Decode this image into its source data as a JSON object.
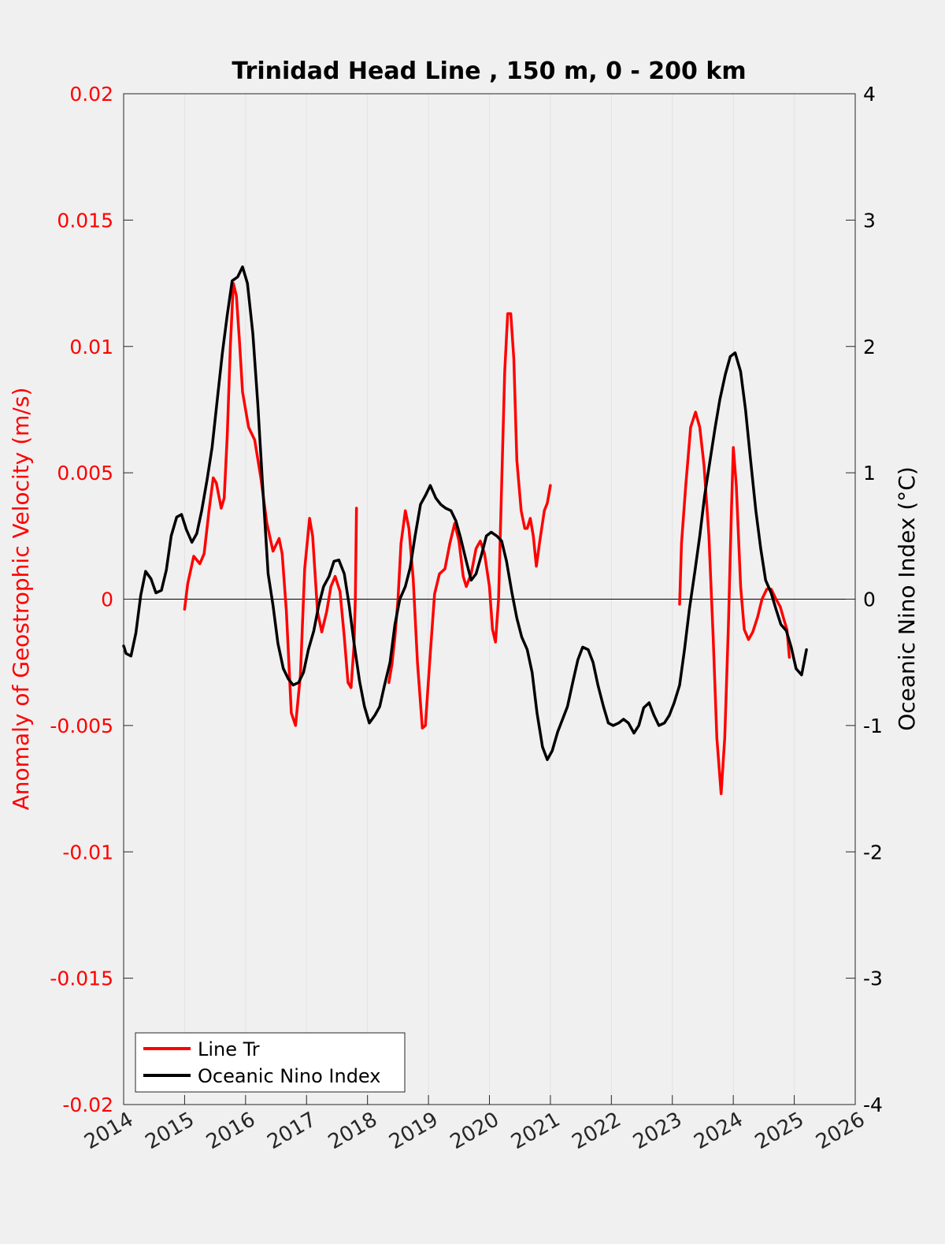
{
  "chart_data": {
    "type": "line",
    "title": "Trinidad Head Line , 150 m, 0 - 200 km",
    "ylabel_left": "Anomaly of Geostrophic Velocity (m/s)",
    "ylabel_right": "Oceanic Nino Index (°C)",
    "xlim": [
      2014,
      2026
    ],
    "ylim_left": [
      -0.02,
      0.02
    ],
    "ylim_right": [
      -4,
      4
    ],
    "x_ticks": [
      "2014",
      "2015",
      "2016",
      "2017",
      "2018",
      "2019",
      "2020",
      "2021",
      "2022",
      "2023",
      "2024",
      "2025",
      "2026"
    ],
    "y_left_ticks": [
      "0.02",
      "0.015",
      "0.01",
      "0.005",
      "0",
      "-0.005",
      "-0.01",
      "-0.015",
      "-0.02"
    ],
    "y_right_ticks": [
      "4",
      "3",
      "2",
      "1",
      "0",
      "-1",
      "-2",
      "-3",
      "-4"
    ],
    "grid": "vertical",
    "legend_position": "bottom-left",
    "colors": {
      "line_tr": "#ff0000",
      "oni": "#000000",
      "left_axis": "#ff0000",
      "right_axis": "#000000"
    },
    "series": [
      {
        "name": "Line Tr",
        "axis": "left",
        "segments": [
          [
            [
              2015.0,
              -0.0004
            ],
            [
              2015.05,
              0.0006
            ],
            [
              2015.15,
              0.0017
            ],
            [
              2015.25,
              0.0014
            ],
            [
              2015.32,
              0.0018
            ],
            [
              2015.4,
              0.0035
            ],
            [
              2015.47,
              0.0048
            ],
            [
              2015.52,
              0.0046
            ],
            [
              2015.6,
              0.0036
            ],
            [
              2015.65,
              0.004
            ],
            [
              2015.7,
              0.0065
            ],
            [
              2015.75,
              0.01
            ],
            [
              2015.8,
              0.0125
            ],
            [
              2015.85,
              0.012
            ],
            [
              2015.9,
              0.0102
            ],
            [
              2015.95,
              0.0082
            ],
            [
              2016.05,
              0.0068
            ],
            [
              2016.15,
              0.0063
            ],
            [
              2016.25,
              0.0048
            ],
            [
              2016.35,
              0.003
            ],
            [
              2016.45,
              0.0019
            ],
            [
              2016.55,
              0.0024
            ],
            [
              2016.6,
              0.0018
            ],
            [
              2016.67,
              -0.0005
            ],
            [
              2016.75,
              -0.0045
            ],
            [
              2016.82,
              -0.005
            ],
            [
              2016.9,
              -0.003
            ],
            [
              2016.97,
              0.0012
            ],
            [
              2017.05,
              0.0032
            ],
            [
              2017.1,
              0.0025
            ],
            [
              2017.18,
              -0.0005
            ],
            [
              2017.25,
              -0.0013
            ],
            [
              2017.33,
              -0.0005
            ],
            [
              2017.4,
              0.0005
            ],
            [
              2017.47,
              0.0009
            ],
            [
              2017.55,
              0.0003
            ],
            [
              2017.62,
              -0.0015
            ],
            [
              2017.68,
              -0.0033
            ],
            [
              2017.73,
              -0.0035
            ],
            [
              2017.78,
              -0.0018
            ],
            [
              2017.8,
              0.0
            ],
            [
              2017.82,
              0.0036
            ]
          ],
          [
            [
              2018.35,
              -0.0033
            ],
            [
              2018.4,
              -0.0026
            ],
            [
              2018.45,
              -0.0015
            ],
            [
              2018.5,
              0.0
            ],
            [
              2018.55,
              0.0022
            ],
            [
              2018.62,
              0.0035
            ],
            [
              2018.68,
              0.0028
            ],
            [
              2018.75,
              0.0008
            ],
            [
              2018.82,
              -0.0025
            ],
            [
              2018.9,
              -0.0051
            ],
            [
              2018.95,
              -0.005
            ],
            [
              2019.02,
              -0.0025
            ],
            [
              2019.1,
              0.0002
            ],
            [
              2019.18,
              0.001
            ],
            [
              2019.27,
              0.0012
            ],
            [
              2019.35,
              0.0022
            ],
            [
              2019.43,
              0.003
            ],
            [
              2019.5,
              0.0023
            ],
            [
              2019.57,
              0.0009
            ],
            [
              2019.62,
              0.0005
            ],
            [
              2019.7,
              0.001
            ],
            [
              2019.78,
              0.002
            ],
            [
              2019.85,
              0.0023
            ],
            [
              2019.92,
              0.0018
            ],
            [
              2020.0,
              0.0005
            ],
            [
              2020.05,
              -0.0012
            ],
            [
              2020.1,
              -0.0017
            ],
            [
              2020.15,
              0.0
            ],
            [
              2020.2,
              0.0045
            ],
            [
              2020.25,
              0.009
            ],
            [
              2020.3,
              0.0113
            ],
            [
              2020.35,
              0.0113
            ],
            [
              2020.4,
              0.0095
            ],
            [
              2020.45,
              0.0055
            ],
            [
              2020.52,
              0.0035
            ],
            [
              2020.58,
              0.0028
            ],
            [
              2020.62,
              0.0028
            ],
            [
              2020.67,
              0.0032
            ],
            [
              2020.72,
              0.0025
            ],
            [
              2020.77,
              0.0013
            ],
            [
              2020.82,
              0.0022
            ],
            [
              2020.9,
              0.0035
            ],
            [
              2020.95,
              0.0038
            ],
            [
              2021.0,
              0.0045
            ]
          ],
          [
            [
              2023.12,
              -0.0002
            ],
            [
              2023.15,
              0.0022
            ],
            [
              2023.22,
              0.0045
            ],
            [
              2023.3,
              0.0068
            ],
            [
              2023.38,
              0.0074
            ],
            [
              2023.45,
              0.0068
            ],
            [
              2023.52,
              0.0053
            ],
            [
              2023.6,
              0.0025
            ],
            [
              2023.67,
              -0.0015
            ],
            [
              2023.73,
              -0.0055
            ],
            [
              2023.8,
              -0.0077
            ],
            [
              2023.86,
              -0.0055
            ],
            [
              2023.92,
              -0.001
            ],
            [
              2023.97,
              0.0035
            ],
            [
              2024.0,
              0.006
            ],
            [
              2024.05,
              0.0045
            ],
            [
              2024.12,
              0.0005
            ],
            [
              2024.18,
              -0.0012
            ],
            [
              2024.25,
              -0.0016
            ],
            [
              2024.32,
              -0.0013
            ],
            [
              2024.4,
              -0.0007
            ],
            [
              2024.47,
              0.0
            ],
            [
              2024.55,
              0.0004
            ],
            [
              2024.62,
              0.0004
            ],
            [
              2024.7,
              0.0
            ],
            [
              2024.77,
              -0.0003
            ],
            [
              2024.83,
              -0.0008
            ],
            [
              2024.88,
              -0.0012
            ],
            [
              2024.92,
              -0.0023
            ]
          ]
        ]
      },
      {
        "name": "Oceanic Nino Index",
        "axis": "right",
        "segments": [
          [
            [
              2014.0,
              -0.37
            ],
            [
              2014.04,
              -0.43
            ],
            [
              2014.12,
              -0.45
            ],
            [
              2014.2,
              -0.27
            ],
            [
              2014.28,
              0.03
            ],
            [
              2014.36,
              0.22
            ],
            [
              2014.45,
              0.16
            ],
            [
              2014.53,
              0.05
            ],
            [
              2014.62,
              0.07
            ],
            [
              2014.7,
              0.23
            ],
            [
              2014.78,
              0.5
            ],
            [
              2014.87,
              0.65
            ],
            [
              2014.95,
              0.67
            ],
            [
              2015.03,
              0.55
            ],
            [
              2015.12,
              0.45
            ],
            [
              2015.2,
              0.52
            ],
            [
              2015.28,
              0.7
            ],
            [
              2015.37,
              0.95
            ],
            [
              2015.45,
              1.2
            ],
            [
              2015.53,
              1.55
            ],
            [
              2015.62,
              1.95
            ],
            [
              2015.7,
              2.25
            ],
            [
              2015.78,
              2.52
            ],
            [
              2015.87,
              2.55
            ],
            [
              2015.95,
              2.63
            ],
            [
              2016.03,
              2.5
            ],
            [
              2016.12,
              2.1
            ],
            [
              2016.2,
              1.55
            ],
            [
              2016.28,
              0.9
            ],
            [
              2016.37,
              0.2
            ],
            [
              2016.45,
              -0.05
            ],
            [
              2016.53,
              -0.35
            ],
            [
              2016.62,
              -0.55
            ],
            [
              2016.7,
              -0.63
            ],
            [
              2016.78,
              -0.68
            ],
            [
              2016.87,
              -0.66
            ],
            [
              2016.95,
              -0.58
            ],
            [
              2017.03,
              -0.4
            ],
            [
              2017.12,
              -0.25
            ],
            [
              2017.2,
              -0.05
            ],
            [
              2017.28,
              0.1
            ],
            [
              2017.37,
              0.18
            ],
            [
              2017.45,
              0.3
            ],
            [
              2017.53,
              0.31
            ],
            [
              2017.62,
              0.2
            ],
            [
              2017.7,
              -0.05
            ],
            [
              2017.78,
              -0.35
            ],
            [
              2017.87,
              -0.65
            ],
            [
              2017.95,
              -0.85
            ],
            [
              2018.03,
              -0.98
            ],
            [
              2018.12,
              -0.92
            ],
            [
              2018.2,
              -0.85
            ],
            [
              2018.28,
              -0.68
            ],
            [
              2018.37,
              -0.5
            ],
            [
              2018.45,
              -0.2
            ],
            [
              2018.53,
              0.0
            ],
            [
              2018.62,
              0.1
            ],
            [
              2018.7,
              0.25
            ],
            [
              2018.78,
              0.5
            ],
            [
              2018.87,
              0.75
            ],
            [
              2018.95,
              0.82
            ],
            [
              2019.03,
              0.9
            ],
            [
              2019.12,
              0.8
            ],
            [
              2019.2,
              0.75
            ],
            [
              2019.28,
              0.72
            ],
            [
              2019.37,
              0.7
            ],
            [
              2019.45,
              0.62
            ],
            [
              2019.53,
              0.48
            ],
            [
              2019.62,
              0.3
            ],
            [
              2019.7,
              0.15
            ],
            [
              2019.78,
              0.2
            ],
            [
              2019.87,
              0.35
            ],
            [
              2019.95,
              0.5
            ],
            [
              2020.03,
              0.53
            ],
            [
              2020.12,
              0.5
            ],
            [
              2020.2,
              0.46
            ],
            [
              2020.28,
              0.3
            ],
            [
              2020.37,
              0.05
            ],
            [
              2020.45,
              -0.15
            ],
            [
              2020.53,
              -0.3
            ],
            [
              2020.62,
              -0.4
            ],
            [
              2020.7,
              -0.58
            ],
            [
              2020.78,
              -0.9
            ],
            [
              2020.87,
              -1.17
            ],
            [
              2020.95,
              -1.27
            ],
            [
              2021.03,
              -1.2
            ],
            [
              2021.12,
              -1.05
            ],
            [
              2021.2,
              -0.95
            ],
            [
              2021.28,
              -0.85
            ],
            [
              2021.37,
              -0.65
            ],
            [
              2021.45,
              -0.48
            ],
            [
              2021.53,
              -0.38
            ],
            [
              2021.62,
              -0.4
            ],
            [
              2021.7,
              -0.5
            ],
            [
              2021.78,
              -0.68
            ],
            [
              2021.87,
              -0.85
            ],
            [
              2021.95,
              -0.98
            ],
            [
              2022.03,
              -1.0
            ],
            [
              2022.12,
              -0.98
            ],
            [
              2022.2,
              -0.95
            ],
            [
              2022.28,
              -0.98
            ],
            [
              2022.37,
              -1.06
            ],
            [
              2022.45,
              -1.0
            ],
            [
              2022.53,
              -0.86
            ],
            [
              2022.62,
              -0.82
            ],
            [
              2022.7,
              -0.92
            ],
            [
              2022.78,
              -1.0
            ],
            [
              2022.87,
              -0.98
            ],
            [
              2022.95,
              -0.92
            ],
            [
              2023.03,
              -0.82
            ],
            [
              2023.12,
              -0.68
            ],
            [
              2023.2,
              -0.4
            ],
            [
              2023.28,
              -0.08
            ],
            [
              2023.37,
              0.22
            ],
            [
              2023.45,
              0.5
            ],
            [
              2023.53,
              0.82
            ],
            [
              2023.62,
              1.1
            ],
            [
              2023.7,
              1.35
            ],
            [
              2023.78,
              1.58
            ],
            [
              2023.87,
              1.78
            ],
            [
              2023.95,
              1.92
            ],
            [
              2024.03,
              1.95
            ],
            [
              2024.12,
              1.8
            ],
            [
              2024.2,
              1.5
            ],
            [
              2024.28,
              1.12
            ],
            [
              2024.37,
              0.7
            ],
            [
              2024.45,
              0.4
            ],
            [
              2024.53,
              0.15
            ],
            [
              2024.62,
              0.05
            ],
            [
              2024.7,
              -0.08
            ],
            [
              2024.78,
              -0.2
            ],
            [
              2024.87,
              -0.25
            ],
            [
              2024.95,
              -0.38
            ],
            [
              2025.03,
              -0.55
            ],
            [
              2025.12,
              -0.6
            ],
            [
              2025.2,
              -0.4
            ]
          ]
        ]
      }
    ]
  }
}
